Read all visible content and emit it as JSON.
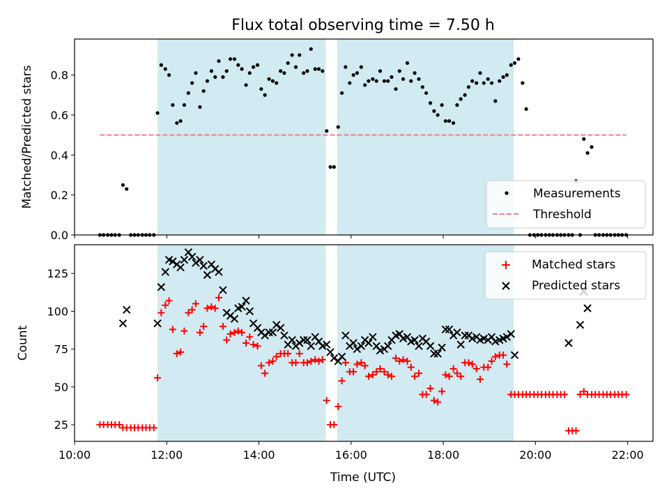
{
  "chart_data": [
    {
      "type": "scatter",
      "title": "Flux total observing time = 7.50 h",
      "ylabel": "Matched/Predicted stars",
      "xlabel": "",
      "xlim": [
        10.0,
        22.55
      ],
      "ylim": [
        0.0,
        0.98
      ],
      "xticks": [
        10,
        12,
        14,
        16,
        18,
        20,
        22
      ],
      "yticks": [
        0.0,
        0.2,
        0.4,
        0.6,
        0.8
      ],
      "ytick_labels": [
        "0.0",
        "0.2",
        "0.4",
        "0.6",
        "0.8"
      ],
      "shaded_intervals": [
        [
          11.8,
          15.45
        ],
        [
          15.7,
          19.53
        ]
      ],
      "shade_color": "#add8e6",
      "legend_position": "lower right",
      "series": [
        {
          "name": "Measurements",
          "color": "#000000",
          "marker": "dot",
          "x": [
            10.55,
            10.63,
            10.72,
            10.8,
            10.88,
            10.97,
            11.05,
            11.13,
            11.22,
            11.3,
            11.38,
            11.47,
            11.55,
            11.63,
            11.72,
            11.8,
            11.88,
            11.97,
            12.05,
            12.13,
            12.22,
            12.3,
            12.38,
            12.47,
            12.55,
            12.63,
            12.72,
            12.8,
            12.88,
            12.97,
            13.05,
            13.13,
            13.22,
            13.3,
            13.38,
            13.47,
            13.55,
            13.63,
            13.72,
            13.8,
            13.88,
            13.97,
            14.05,
            14.13,
            14.22,
            14.3,
            14.38,
            14.47,
            14.55,
            14.63,
            14.72,
            14.8,
            14.88,
            14.97,
            15.05,
            15.13,
            15.22,
            15.3,
            15.38,
            15.47,
            15.55,
            15.63,
            15.72,
            15.8,
            15.88,
            15.97,
            16.05,
            16.13,
            16.22,
            16.3,
            16.38,
            16.47,
            16.55,
            16.63,
            16.72,
            16.8,
            16.88,
            16.97,
            17.05,
            17.13,
            17.22,
            17.3,
            17.38,
            17.47,
            17.55,
            17.63,
            17.72,
            17.8,
            17.88,
            17.97,
            18.05,
            18.13,
            18.22,
            18.3,
            18.38,
            18.47,
            18.55,
            18.63,
            18.72,
            18.8,
            18.88,
            18.97,
            19.05,
            19.13,
            19.22,
            19.3,
            19.38,
            19.47,
            19.55,
            19.63,
            19.72,
            19.8,
            19.88,
            19.97,
            20.05,
            20.13,
            20.22,
            20.3,
            20.38,
            20.47,
            20.55,
            20.63,
            20.72,
            20.8,
            20.88,
            20.97,
            21.05,
            21.13,
            21.22,
            21.3,
            21.38,
            21.47,
            21.55,
            21.63,
            21.72,
            21.8,
            21.88,
            21.97
          ],
          "y": [
            0.0,
            0.0,
            0.0,
            0.0,
            0.0,
            0.0,
            0.25,
            0.23,
            0.0,
            0.0,
            0.0,
            0.0,
            0.0,
            0.0,
            0.0,
            0.61,
            0.85,
            0.83,
            0.8,
            0.65,
            0.56,
            0.57,
            0.65,
            0.71,
            0.76,
            0.81,
            0.64,
            0.72,
            0.77,
            0.82,
            0.79,
            0.87,
            0.79,
            0.82,
            0.88,
            0.88,
            0.85,
            0.83,
            0.75,
            0.81,
            0.84,
            0.85,
            0.73,
            0.7,
            0.78,
            0.77,
            0.76,
            0.82,
            0.81,
            0.86,
            0.9,
            0.84,
            0.9,
            0.81,
            0.82,
            0.93,
            0.83,
            0.83,
            0.82,
            0.52,
            0.34,
            0.34,
            0.54,
            0.71,
            0.84,
            0.76,
            0.8,
            0.81,
            0.84,
            0.75,
            0.77,
            0.78,
            0.77,
            0.82,
            0.77,
            0.77,
            0.79,
            0.73,
            0.82,
            0.78,
            0.86,
            0.77,
            0.81,
            0.78,
            0.74,
            0.71,
            0.66,
            0.62,
            0.6,
            0.65,
            0.57,
            0.57,
            0.56,
            0.65,
            0.68,
            0.7,
            0.74,
            0.77,
            0.76,
            0.81,
            0.76,
            0.78,
            0.76,
            0.67,
            0.77,
            0.79,
            0.8,
            0.85,
            0.86,
            0.88,
            0.76,
            0.63,
            0.0,
            0.0,
            0.0,
            0.0,
            0.0,
            0.0,
            0.0,
            0.0,
            0.0,
            0.0,
            0.0,
            0.0,
            0.27,
            0.0,
            0.48,
            0.41,
            0.44,
            0.0,
            0.0,
            0.0,
            0.0,
            0.0,
            0.0,
            0.0,
            0.0,
            0.0
          ]
        },
        {
          "name": "Threshold",
          "color": "#f08080",
          "style": "dashed",
          "x": [
            10.55,
            21.97
          ],
          "y": [
            0.5,
            0.5
          ]
        }
      ]
    },
    {
      "type": "scatter",
      "title": "",
      "ylabel": "Count",
      "xlabel": "Time (UTC)",
      "xlim": [
        10.0,
        22.55
      ],
      "ylim": [
        14,
        144
      ],
      "xticks": [
        10,
        12,
        14,
        16,
        18,
        20,
        22
      ],
      "xtick_labels": [
        "10:00",
        "12:00",
        "14:00",
        "16:00",
        "18:00",
        "20:00",
        "22:00"
      ],
      "yticks": [
        25,
        50,
        75,
        100,
        125
      ],
      "ytick_labels": [
        "25",
        "50",
        "75",
        "100",
        "125"
      ],
      "shaded_intervals": [
        [
          11.8,
          15.45
        ],
        [
          15.7,
          19.53
        ]
      ],
      "shade_color": "#add8e6",
      "legend_position": "upper right",
      "series": [
        {
          "name": "Matched stars",
          "color": "#ff0000",
          "marker": "plus",
          "x": [
            10.55,
            10.63,
            10.72,
            10.8,
            10.88,
            10.97,
            11.05,
            11.13,
            11.22,
            11.3,
            11.38,
            11.47,
            11.55,
            11.63,
            11.72,
            11.8,
            11.88,
            11.97,
            12.05,
            12.13,
            12.22,
            12.3,
            12.38,
            12.47,
            12.55,
            12.63,
            12.72,
            12.8,
            12.88,
            12.97,
            13.05,
            13.13,
            13.22,
            13.3,
            13.38,
            13.47,
            13.55,
            13.63,
            13.72,
            13.8,
            13.88,
            13.97,
            14.05,
            14.13,
            14.22,
            14.3,
            14.38,
            14.47,
            14.55,
            14.63,
            14.72,
            14.8,
            14.88,
            14.97,
            15.05,
            15.13,
            15.22,
            15.3,
            15.38,
            15.47,
            15.55,
            15.63,
            15.72,
            15.8,
            15.88,
            15.97,
            16.05,
            16.13,
            16.22,
            16.3,
            16.38,
            16.47,
            16.55,
            16.63,
            16.72,
            16.8,
            16.88,
            16.97,
            17.05,
            17.13,
            17.22,
            17.3,
            17.38,
            17.47,
            17.55,
            17.63,
            17.72,
            17.8,
            17.88,
            17.97,
            18.05,
            18.13,
            18.22,
            18.3,
            18.38,
            18.47,
            18.55,
            18.63,
            18.72,
            18.8,
            18.88,
            18.97,
            19.05,
            19.13,
            19.22,
            19.3,
            19.38,
            19.47,
            19.55,
            19.63,
            19.72,
            19.8,
            19.88,
            19.97,
            20.05,
            20.13,
            20.22,
            20.3,
            20.38,
            20.47,
            20.55,
            20.63,
            20.72,
            20.8,
            20.88,
            20.97,
            21.05,
            21.13,
            21.22,
            21.3,
            21.38,
            21.47,
            21.55,
            21.63,
            21.72,
            21.8,
            21.88,
            21.97
          ],
          "y": [
            25,
            25,
            25,
            25,
            25,
            25,
            23,
            23,
            23,
            23,
            23,
            23,
            23,
            23,
            23,
            56,
            99,
            104,
            107,
            88,
            72,
            73,
            87,
            99,
            101,
            105,
            86,
            90,
            102,
            103,
            102,
            109,
            90,
            81,
            85,
            86,
            87,
            86,
            79,
            83,
            78,
            77,
            64,
            59,
            66,
            67,
            70,
            72,
            72,
            72,
            66,
            66,
            72,
            66,
            66,
            67,
            68,
            67,
            68,
            41,
            25,
            25,
            37,
            54,
            66,
            60,
            60,
            65,
            66,
            64,
            57,
            58,
            60,
            62,
            60,
            58,
            57,
            69,
            67,
            68,
            67,
            63,
            57,
            59,
            45,
            45,
            49,
            41,
            40,
            47,
            58,
            57,
            62,
            59,
            57,
            66,
            66,
            65,
            62,
            55,
            63,
            63,
            67,
            70,
            71,
            71,
            65,
            45,
            45,
            45,
            45,
            45,
            45,
            45,
            45,
            45,
            45,
            45,
            45,
            45,
            45,
            45,
            21,
            21,
            21,
            45,
            47,
            45,
            45,
            45,
            45,
            45,
            45,
            45,
            45,
            45,
            45,
            45
          ]
        },
        {
          "name": "Predicted stars",
          "color": "#000000",
          "marker": "x",
          "x": [
            11.05,
            11.13,
            11.8,
            11.88,
            11.97,
            12.05,
            12.13,
            12.22,
            12.3,
            12.38,
            12.47,
            12.55,
            12.63,
            12.72,
            12.8,
            12.88,
            12.97,
            13.05,
            13.13,
            13.22,
            13.3,
            13.38,
            13.47,
            13.55,
            13.63,
            13.72,
            13.8,
            13.88,
            13.97,
            14.05,
            14.13,
            14.22,
            14.3,
            14.38,
            14.47,
            14.55,
            14.63,
            14.72,
            14.8,
            14.88,
            14.97,
            15.05,
            15.13,
            15.22,
            15.3,
            15.38,
            15.47,
            15.55,
            15.63,
            15.72,
            15.8,
            15.88,
            15.97,
            16.05,
            16.13,
            16.22,
            16.3,
            16.38,
            16.47,
            16.55,
            16.63,
            16.72,
            16.8,
            16.88,
            16.97,
            17.05,
            17.13,
            17.22,
            17.3,
            17.38,
            17.47,
            17.55,
            17.63,
            17.72,
            17.8,
            17.88,
            17.97,
            18.05,
            18.13,
            18.22,
            18.3,
            18.38,
            18.47,
            18.55,
            18.63,
            18.72,
            18.8,
            18.88,
            18.97,
            19.05,
            19.13,
            19.22,
            19.3,
            19.38,
            19.47,
            19.55,
            20.72,
            20.97,
            21.05,
            21.13
          ],
          "y": [
            92,
            101,
            92,
            116,
            126,
            134,
            133,
            131,
            129,
            134,
            139,
            136,
            132,
            134,
            130,
            124,
            131,
            128,
            126,
            114,
            99,
            97,
            95,
            102,
            103,
            107,
            100,
            92,
            89,
            86,
            84,
            86,
            86,
            91,
            89,
            84,
            78,
            81,
            77,
            79,
            81,
            81,
            77,
            83,
            80,
            77,
            78,
            73,
            69,
            67,
            70,
            84,
            77,
            79,
            75,
            77,
            81,
            79,
            83,
            77,
            74,
            75,
            77,
            81,
            84,
            85,
            82,
            83,
            80,
            81,
            77,
            82,
            80,
            77,
            72,
            72,
            76,
            88,
            88,
            84,
            86,
            78,
            84,
            84,
            82,
            83,
            81,
            82,
            81,
            83,
            80,
            81,
            82,
            83,
            85,
            71,
            79,
            91,
            113,
            102
          ]
        }
      ]
    }
  ]
}
